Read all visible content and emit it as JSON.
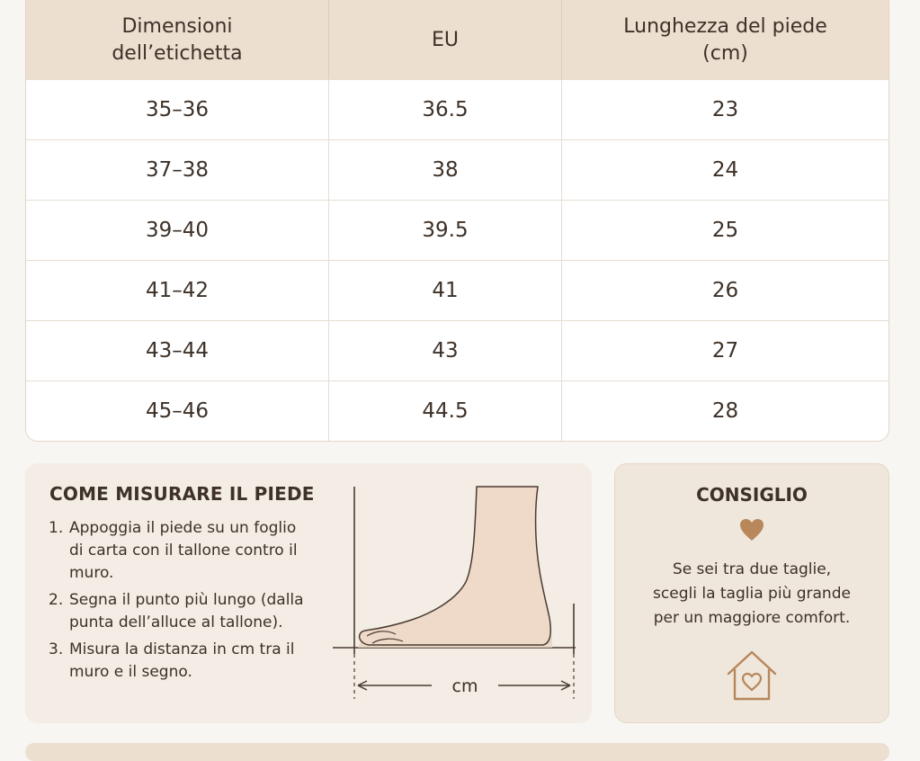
{
  "table": {
    "headers": [
      "Dimensioni dell’etichetta",
      "EU",
      "Lunghezza del piede (cm)"
    ],
    "rows": [
      [
        "35–36",
        "36.5",
        "23"
      ],
      [
        "37–38",
        "38",
        "24"
      ],
      [
        "39–40",
        "39.5",
        "25"
      ],
      [
        "41–42",
        "41",
        "26"
      ],
      [
        "43–44",
        "43",
        "27"
      ],
      [
        "45–46",
        "44.5",
        "28"
      ]
    ]
  },
  "measure": {
    "title": "COME MISURARE IL PIEDE",
    "steps": [
      {
        "num": "1.",
        "text": "Appoggia il piede su un foglio di carta con il tallone contro il muro."
      },
      {
        "num": "2.",
        "text": "Segna il punto più lungo (dalla punta dell’alluce al tallone)."
      },
      {
        "num": "3.",
        "text": "Misura la distanza in cm tra il muro e il segno."
      }
    ],
    "unit_label": "cm"
  },
  "tip": {
    "title": "CONSIGLIO",
    "text": "Se sei tra due taglie,\nscegli la taglia più grande\nper un maggiore comfort."
  },
  "icons": {
    "heart": "heart-icon",
    "home": "home-heart-icon",
    "foot": "foot-illustration"
  },
  "colors": {
    "header_bg": "#ecdfcf",
    "accent_brown": "#b8875a",
    "text": "#3d3128",
    "card_bg": "#f3ede5"
  }
}
